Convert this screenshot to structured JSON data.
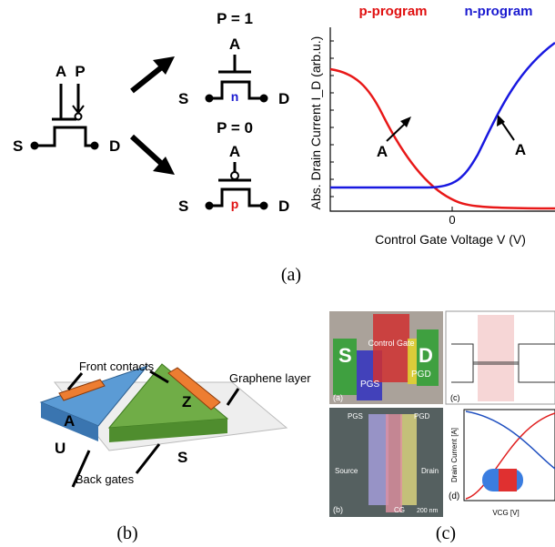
{
  "panel_a": {
    "left": {
      "a": "A",
      "p": "P",
      "s": "S",
      "d": "D"
    },
    "n_type": {
      "title": "P = 1",
      "a": "A",
      "s": "S",
      "channel": "n",
      "d": "D"
    },
    "p_type": {
      "title": "P = 0",
      "a": "A",
      "s": "S",
      "channel": "p",
      "d": "D"
    },
    "plot": {
      "legend_p": "p-program",
      "legend_n": "n-program",
      "y_label": "Abs. Drain Current I_D (arb.u.)",
      "x_label": "Control Gate Voltage V  (V)",
      "x_tick": "0",
      "annotation_left": "A",
      "annotation_right": "A"
    },
    "caption": "(a)"
  },
  "panel_b": {
    "front_contacts": "Front contacts",
    "graphene_layer": "Graphene layer",
    "a": "A",
    "z": "Z",
    "u": "U",
    "s": "S",
    "back_gates": "Back gates",
    "caption": "(b)"
  },
  "panel_c": {
    "s": "S",
    "control_gate": "Control Gate",
    "d": "D",
    "pg_s": "PGS",
    "pg_d": "PGD",
    "label_a": "(a)",
    "label_b": "(b)",
    "label_c": "(c)",
    "label_d": "(d)",
    "source": "Source",
    "drain": "Drain",
    "cg": "CG",
    "scale": "200 nm",
    "y_label": "Drain Current [A]",
    "x_label": "VCG [V]",
    "caption": "(c)"
  }
}
